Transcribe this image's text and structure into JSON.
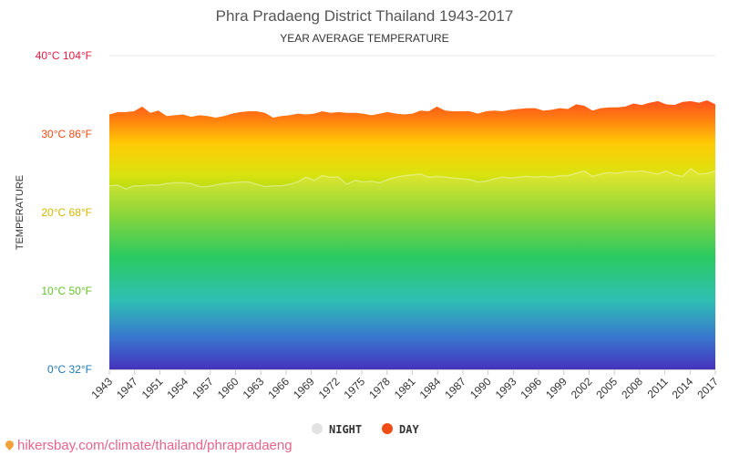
{
  "chart_data": {
    "type": "area",
    "title": "Phra Pradaeng District Thailand 1943-2017",
    "subtitle": "YEAR AVERAGE TEMPERATURE",
    "ylabel": "TEMPERATURE",
    "ylim": [
      0,
      40
    ],
    "y_ticks": [
      {
        "value": 0,
        "label": "0°C 32°F",
        "color": "#1f78b4"
      },
      {
        "value": 10,
        "label": "10°C 50°F",
        "color": "#66c22b"
      },
      {
        "value": 20,
        "label": "20°C 68°F",
        "color": "#d4b800"
      },
      {
        "value": 30,
        "label": "30°C 86°F",
        "color": "#f04d16"
      },
      {
        "value": 40,
        "label": "40°C 104°F",
        "color": "#e81940"
      }
    ],
    "x_tick_labels": [
      "1943",
      "1947",
      "1951",
      "1954",
      "1957",
      "1960",
      "1963",
      "1966",
      "1969",
      "1972",
      "1975",
      "1978",
      "1981",
      "1984",
      "1987",
      "1990",
      "1993",
      "1996",
      "1999",
      "2002",
      "2005",
      "2008",
      "2011",
      "2014",
      "2017"
    ],
    "x_start": 1943,
    "x_end": 2017,
    "series": [
      {
        "name": "DAY",
        "color": "#f04d16",
        "values": [
          32.5,
          32.8,
          32.8,
          32.9,
          33.5,
          32.7,
          33.0,
          32.3,
          32.4,
          32.5,
          32.2,
          32.4,
          32.3,
          32.1,
          32.3,
          32.6,
          32.8,
          32.9,
          32.9,
          32.7,
          32.1,
          32.3,
          32.4,
          32.6,
          32.5,
          32.6,
          32.9,
          32.7,
          32.8,
          32.7,
          32.7,
          32.6,
          32.4,
          32.6,
          32.8,
          32.6,
          32.5,
          32.6,
          33.0,
          32.9,
          33.5,
          33.0,
          32.9,
          32.9,
          32.9,
          32.6,
          32.9,
          33.0,
          32.9,
          33.1,
          33.2,
          33.3,
          33.3,
          33.0,
          33.1,
          33.3,
          33.2,
          33.8,
          33.6,
          33.0,
          33.3,
          33.4,
          33.4,
          33.5,
          33.9,
          33.7,
          34.0,
          34.2,
          33.8,
          33.7,
          34.1,
          34.2,
          34.0,
          34.3,
          33.8
        ]
      },
      {
        "name": "NIGHT",
        "color": "#e2e2e2",
        "values": [
          23.4,
          23.5,
          23.0,
          23.4,
          23.4,
          23.5,
          23.5,
          23.7,
          23.8,
          23.8,
          23.7,
          23.3,
          23.3,
          23.5,
          23.7,
          23.8,
          23.9,
          23.9,
          23.6,
          23.3,
          23.4,
          23.4,
          23.6,
          23.9,
          24.5,
          24.1,
          24.7,
          24.5,
          24.5,
          23.6,
          24.1,
          23.9,
          24.0,
          23.8,
          24.2,
          24.5,
          24.7,
          24.8,
          24.9,
          24.5,
          24.6,
          24.5,
          24.4,
          24.3,
          24.2,
          23.9,
          24.0,
          24.3,
          24.5,
          24.4,
          24.5,
          24.6,
          24.5,
          24.6,
          24.5,
          24.7,
          24.7,
          25.0,
          25.3,
          24.6,
          24.9,
          25.1,
          25.0,
          25.2,
          25.2,
          25.3,
          25.1,
          24.9,
          25.3,
          24.8,
          24.6,
          25.6,
          24.9,
          25.0,
          25.3
        ]
      }
    ],
    "legend": [
      "NIGHT",
      "DAY"
    ],
    "legend_position": "bottom",
    "grid": true
  },
  "watermark": "hikersbay.com/climate/thailand/phrapradaeng"
}
